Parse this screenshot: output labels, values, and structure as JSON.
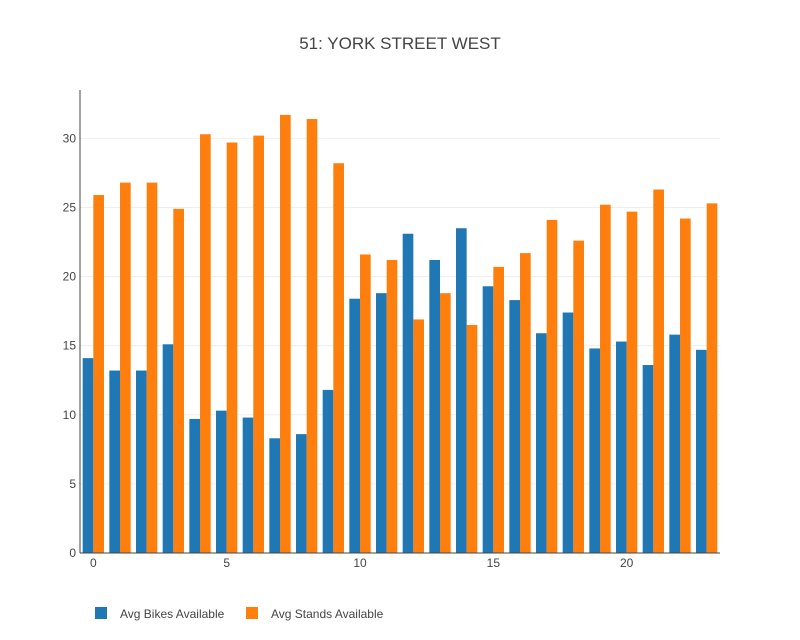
{
  "chart_data": {
    "type": "bar",
    "title": "51: YORK STREET WEST",
    "xlabel": "",
    "ylabel": "",
    "x": [
      0,
      1,
      2,
      3,
      4,
      5,
      6,
      7,
      8,
      9,
      10,
      11,
      12,
      13,
      14,
      15,
      16,
      17,
      18,
      19,
      20,
      21,
      22,
      23
    ],
    "xticks": [
      0,
      5,
      10,
      15,
      20
    ],
    "yticks": [
      0,
      5,
      10,
      15,
      20,
      25,
      30
    ],
    "xlim": [
      -0.5,
      23.5
    ],
    "ylim": [
      0,
      33.5
    ],
    "grid": "horizontal",
    "legend_position": "bottom",
    "series": [
      {
        "name": "Avg Bikes Available",
        "color": "#1f77b4",
        "values": [
          14.1,
          13.2,
          13.2,
          15.1,
          9.7,
          10.3,
          9.8,
          8.3,
          8.6,
          11.8,
          18.4,
          18.8,
          23.1,
          21.2,
          23.5,
          19.3,
          18.3,
          15.9,
          17.4,
          14.8,
          15.3,
          13.6,
          15.8,
          14.7
        ]
      },
      {
        "name": "Avg Stands Available",
        "color": "#ff7f0e",
        "values": [
          25.9,
          26.8,
          26.8,
          24.9,
          30.3,
          29.7,
          30.2,
          31.7,
          31.4,
          28.2,
          21.6,
          21.2,
          16.9,
          18.8,
          16.5,
          20.7,
          21.7,
          24.1,
          22.6,
          25.2,
          24.7,
          26.3,
          24.2,
          25.3
        ]
      }
    ]
  }
}
